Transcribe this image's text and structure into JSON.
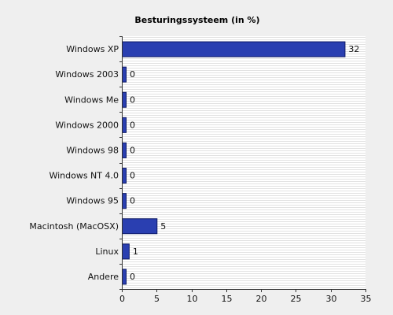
{
  "chart_data": {
    "type": "bar",
    "orientation": "horizontal",
    "title": "Besturingssysteem (in %)",
    "xlabel": "",
    "ylabel": "",
    "categories": [
      "Windows XP",
      "Windows 2003",
      "Windows Me",
      "Windows 2000",
      "Windows 98",
      "Windows NT 4.0",
      "Windows 95",
      "Macintosh (MacOSX)",
      "Linux",
      "Andere"
    ],
    "values": [
      32,
      0,
      0,
      0,
      0,
      0,
      0,
      5,
      1,
      0
    ],
    "xlim": [
      0,
      35
    ],
    "xticks": [
      0,
      5,
      10,
      15,
      20,
      25,
      30,
      35
    ],
    "grid": true,
    "legend": "none",
    "colors": {
      "background": "#efefef",
      "plot_background": "#ffffff",
      "grid_stripe": "#e2e2e2",
      "bar_fill": "#2a3fb1",
      "bar_stroke": "#0e1a66",
      "axis": "#333333",
      "text": "#111111"
    }
  }
}
